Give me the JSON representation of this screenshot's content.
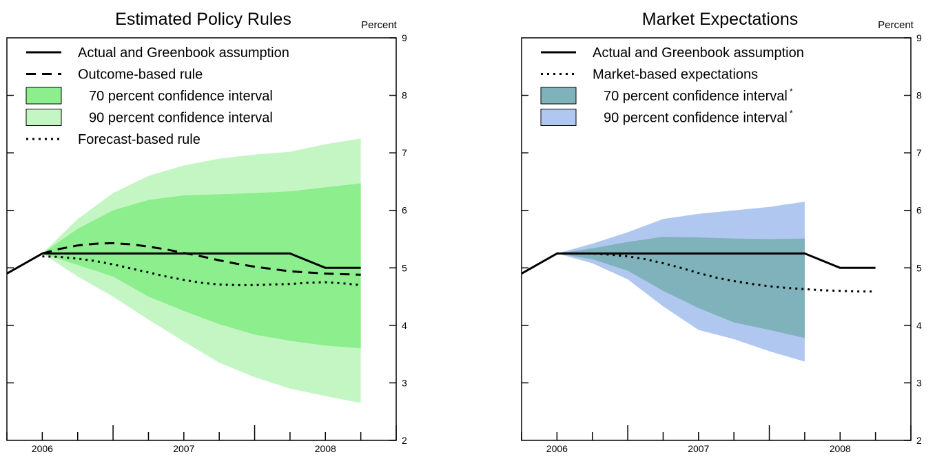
{
  "colors": {
    "left_ci70": "#8cee8c",
    "left_ci90": "#c4f6c4",
    "right_ci70": "#80b2bc",
    "right_ci90": "#b0c8f0",
    "line": "#000000"
  },
  "chart_data": [
    {
      "type": "line",
      "title": "Estimated Policy Rules",
      "unit_label": "Percent",
      "ylim": [
        2,
        9
      ],
      "yticks": [
        "2",
        "3",
        "4",
        "5",
        "6",
        "7",
        "8",
        "9"
      ],
      "xlim": [
        2005.875,
        2008.625
      ],
      "x_tick_labels": [
        "2006",
        "2007",
        "2008"
      ],
      "legend": [
        {
          "label": "Actual and Greenbook assumption",
          "style": "solid"
        },
        {
          "label": "Outcome-based rule",
          "style": "dashed"
        },
        {
          "label": "70 percent confidence interval",
          "style": "ci70"
        },
        {
          "label": "90 percent confidence interval",
          "style": "ci90"
        },
        {
          "label": "Forecast-based rule",
          "style": "dotted"
        }
      ],
      "series": [
        {
          "name": "Actual and Greenbook assumption",
          "style": "solid",
          "x": [
            2005.875,
            2006.125,
            2006.375,
            2006.625,
            2006.875,
            2007.125,
            2007.375,
            2007.625,
            2007.875,
            2008.125,
            2008.375
          ],
          "y": [
            4.9,
            5.25,
            5.25,
            5.25,
            5.25,
            5.25,
            5.25,
            5.25,
            5.25,
            5.0,
            5.0
          ]
        },
        {
          "name": "Outcome-based rule",
          "style": "dashed",
          "x": [
            2006.125,
            2006.25,
            2006.375,
            2006.5,
            2006.625,
            2006.75,
            2006.875,
            2007.0,
            2007.125,
            2007.25,
            2007.375,
            2007.5,
            2007.625,
            2007.75,
            2007.875,
            2008.0,
            2008.125,
            2008.25,
            2008.375
          ],
          "y": [
            5.25,
            5.33,
            5.39,
            5.42,
            5.43,
            5.41,
            5.37,
            5.32,
            5.26,
            5.2,
            5.13,
            5.07,
            5.02,
            4.98,
            4.94,
            4.92,
            4.9,
            4.89,
            4.88
          ]
        },
        {
          "name": "Forecast-based rule",
          "style": "dotted",
          "x": [
            2006.125,
            2006.25,
            2006.375,
            2006.5,
            2006.625,
            2006.75,
            2006.875,
            2007.0,
            2007.125,
            2007.25,
            2007.375,
            2007.5,
            2007.625,
            2007.75,
            2007.875,
            2008.0,
            2008.125,
            2008.25,
            2008.375
          ],
          "y": [
            5.2,
            5.19,
            5.16,
            5.12,
            5.06,
            4.99,
            4.92,
            4.85,
            4.79,
            4.74,
            4.71,
            4.7,
            4.7,
            4.71,
            4.72,
            4.74,
            4.75,
            4.73,
            4.7
          ]
        }
      ],
      "bands": [
        {
          "name": "90 percent confidence interval",
          "color_key": "left_ci90",
          "x": [
            2006.125,
            2006.375,
            2006.625,
            2006.875,
            2007.125,
            2007.375,
            2007.625,
            2007.875,
            2008.125,
            2008.375
          ],
          "upper": [
            5.25,
            5.85,
            6.3,
            6.6,
            6.78,
            6.9,
            6.97,
            7.02,
            7.15,
            7.25
          ],
          "lower": [
            5.25,
            4.85,
            4.5,
            4.1,
            3.72,
            3.35,
            3.1,
            2.9,
            2.77,
            2.65
          ]
        },
        {
          "name": "70 percent confidence interval",
          "color_key": "left_ci70",
          "x": [
            2006.125,
            2006.375,
            2006.625,
            2006.875,
            2007.125,
            2007.375,
            2007.625,
            2007.875,
            2008.125,
            2008.375
          ],
          "upper": [
            5.25,
            5.68,
            6.0,
            6.18,
            6.26,
            6.28,
            6.3,
            6.33,
            6.4,
            6.47
          ],
          "lower": [
            5.25,
            5.05,
            4.85,
            4.5,
            4.25,
            4.02,
            3.84,
            3.73,
            3.65,
            3.6
          ]
        }
      ]
    },
    {
      "type": "line",
      "title": "Market Expectations",
      "unit_label": "Percent",
      "ylim": [
        2,
        9
      ],
      "yticks": [
        "2",
        "3",
        "4",
        "5",
        "6",
        "7",
        "8",
        "9"
      ],
      "xlim": [
        2005.875,
        2008.625
      ],
      "x_tick_labels": [
        "2006",
        "2007",
        "2008"
      ],
      "legend": [
        {
          "label": "Actual and Greenbook assumption",
          "style": "solid"
        },
        {
          "label": "Market-based expectations",
          "style": "dotted"
        },
        {
          "label": "70 percent confidence interval",
          "marker": "*",
          "style": "ci70"
        },
        {
          "label": "90 percent confidence interval",
          "marker": "*",
          "style": "ci90"
        }
      ],
      "series": [
        {
          "name": "Actual and Greenbook assumption",
          "style": "solid",
          "x": [
            2005.875,
            2006.125,
            2006.375,
            2006.625,
            2006.875,
            2007.125,
            2007.375,
            2007.625,
            2007.875,
            2008.125,
            2008.375
          ],
          "y": [
            4.9,
            5.25,
            5.25,
            5.25,
            5.25,
            5.25,
            5.25,
            5.25,
            5.25,
            5.0,
            5.0
          ]
        },
        {
          "name": "Market-based expectations",
          "style": "dotted",
          "x": [
            2006.125,
            2006.25,
            2006.375,
            2006.5,
            2006.625,
            2006.75,
            2006.875,
            2007.0,
            2007.125,
            2007.25,
            2007.375,
            2007.5,
            2007.625,
            2007.75,
            2007.875,
            2008.0,
            2008.125,
            2008.25,
            2008.375
          ],
          "y": [
            5.25,
            5.25,
            5.25,
            5.23,
            5.2,
            5.15,
            5.08,
            5.0,
            4.91,
            4.83,
            4.77,
            4.72,
            4.68,
            4.65,
            4.63,
            4.61,
            4.6,
            4.59,
            4.59
          ]
        }
      ],
      "bands": [
        {
          "name": "90 percent confidence interval",
          "color_key": "right_ci90",
          "x": [
            2006.125,
            2006.375,
            2006.625,
            2006.875,
            2007.125,
            2007.375,
            2007.625,
            2007.875
          ],
          "upper": [
            5.25,
            5.42,
            5.62,
            5.85,
            5.94,
            6.0,
            6.06,
            6.15
          ],
          "lower": [
            5.25,
            5.08,
            4.8,
            4.33,
            3.92,
            3.76,
            3.55,
            3.37
          ]
        },
        {
          "name": "70 percent confidence interval",
          "color_key": "right_ci70",
          "x": [
            2006.125,
            2006.375,
            2006.625,
            2006.875,
            2007.125,
            2007.375,
            2007.625,
            2007.875
          ],
          "upper": [
            5.25,
            5.34,
            5.45,
            5.54,
            5.53,
            5.51,
            5.5,
            5.51
          ],
          "lower": [
            5.25,
            5.15,
            4.95,
            4.6,
            4.3,
            4.05,
            3.92,
            3.78
          ]
        }
      ]
    }
  ]
}
